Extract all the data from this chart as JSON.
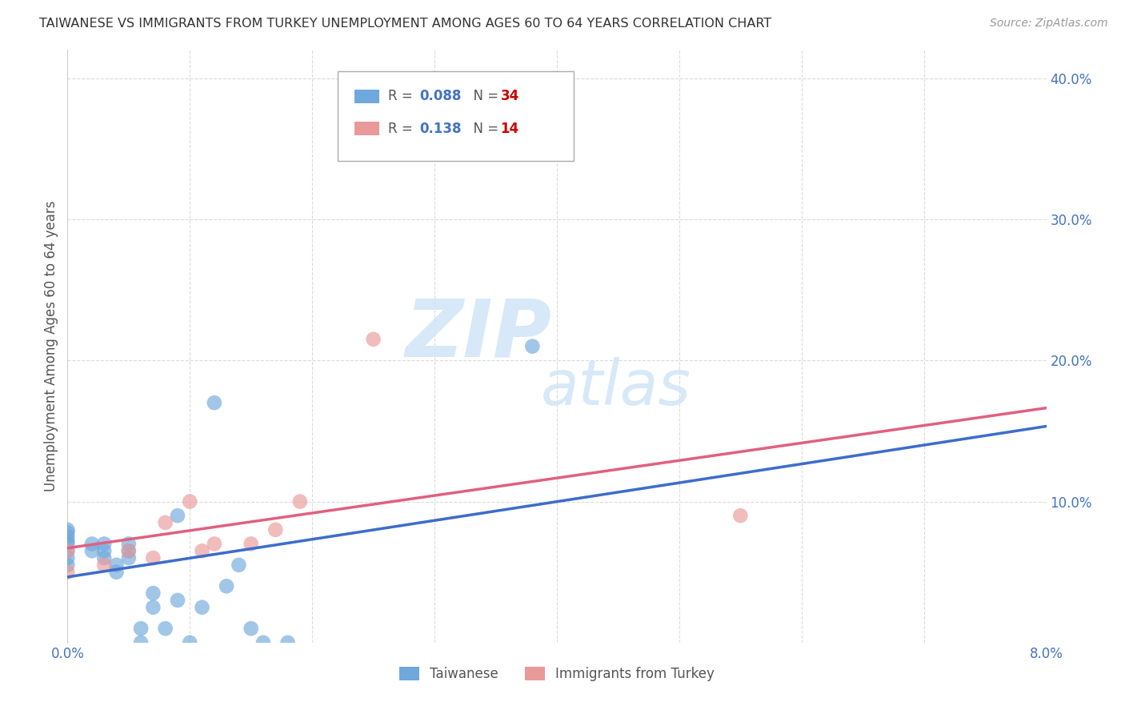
{
  "title": "TAIWANESE VS IMMIGRANTS FROM TURKEY UNEMPLOYMENT AMONG AGES 60 TO 64 YEARS CORRELATION CHART",
  "source": "Source: ZipAtlas.com",
  "ylabel": "Unemployment Among Ages 60 to 64 years",
  "xlim": [
    0.0,
    0.08
  ],
  "ylim": [
    0.0,
    0.42
  ],
  "taiwanese_R": 0.088,
  "taiwanese_N": 34,
  "turkey_R": 0.138,
  "turkey_N": 14,
  "taiwanese_color": "#6fa8dc",
  "turkey_color": "#ea9999",
  "trend_taiwanese_solid_color": "#3d6dcc",
  "trend_taiwanese_dash_color": "#a0c0e8",
  "trend_turkey_color": "#e06080",
  "watermark_color": "#d0e4f7",
  "background_color": "#ffffff",
  "grid_color": "#cccccc",
  "title_color": "#333333",
  "tick_label_color": "#4472c4",
  "taiwanese_x": [
    0.0,
    0.0,
    0.0,
    0.0,
    0.0,
    0.0,
    0.0,
    0.0,
    0.002,
    0.002,
    0.003,
    0.003,
    0.003,
    0.004,
    0.004,
    0.005,
    0.005,
    0.005,
    0.006,
    0.006,
    0.007,
    0.007,
    0.008,
    0.009,
    0.009,
    0.01,
    0.011,
    0.012,
    0.013,
    0.014,
    0.015,
    0.016,
    0.018,
    0.038
  ],
  "taiwanese_y": [
    0.055,
    0.06,
    0.065,
    0.07,
    0.072,
    0.075,
    0.078,
    0.08,
    0.065,
    0.07,
    0.06,
    0.065,
    0.07,
    0.05,
    0.055,
    0.06,
    0.065,
    0.07,
    0.0,
    0.01,
    0.025,
    0.035,
    0.01,
    0.03,
    0.09,
    0.0,
    0.025,
    0.17,
    0.04,
    0.055,
    0.01,
    0.0,
    0.0,
    0.21
  ],
  "turkey_x": [
    0.0,
    0.0,
    0.003,
    0.005,
    0.007,
    0.008,
    0.01,
    0.011,
    0.012,
    0.015,
    0.017,
    0.019,
    0.025,
    0.055
  ],
  "turkey_y": [
    0.05,
    0.065,
    0.055,
    0.065,
    0.06,
    0.085,
    0.1,
    0.065,
    0.07,
    0.07,
    0.08,
    0.1,
    0.215,
    0.09
  ],
  "legend_R_tw_color": "#4472c4",
  "legend_N_tw_color": "#cc0000",
  "legend_R_tr_color": "#cc0000",
  "legend_N_tr_color": "#cc0000"
}
